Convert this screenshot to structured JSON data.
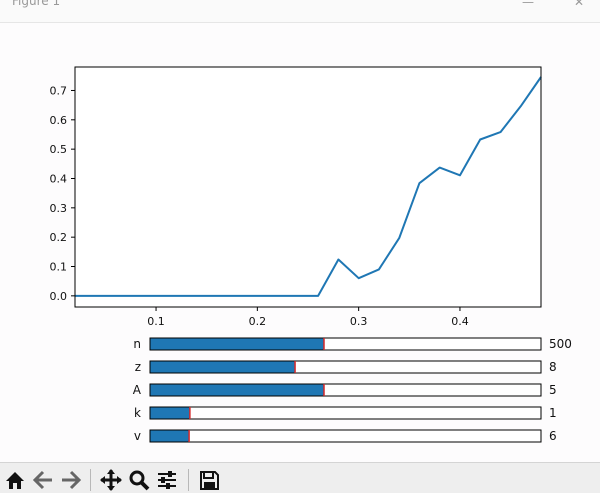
{
  "window": {
    "title": "Figure 1",
    "minimize_glyph": "—",
    "close_glyph": "✕"
  },
  "chart_data": {
    "type": "line",
    "x": [
      0.02,
      0.04,
      0.06,
      0.08,
      0.1,
      0.12,
      0.14,
      0.16,
      0.18,
      0.2,
      0.22,
      0.24,
      0.26,
      0.28,
      0.3,
      0.32,
      0.34,
      0.36,
      0.38,
      0.4,
      0.42,
      0.44,
      0.46,
      0.48
    ],
    "series": [
      {
        "values": [
          0,
          0,
          0,
          0,
          0,
          0,
          0,
          0,
          0,
          0,
          0,
          0,
          0,
          0.124,
          0.06,
          0.09,
          0.197,
          0.384,
          0.437,
          0.411,
          0.533,
          0.558,
          0.646,
          0.746
        ],
        "color": "#1f77b4"
      }
    ],
    "xlim": [
      0.02,
      0.48
    ],
    "ylim": [
      -0.038,
      0.78
    ],
    "xticks": [
      "0.1",
      "0.2",
      "0.3",
      "0.4"
    ],
    "yticks": [
      "0.0",
      "0.1",
      "0.2",
      "0.3",
      "0.4",
      "0.5",
      "0.6",
      "0.7"
    ],
    "xtick_values": [
      0.1,
      0.2,
      0.3,
      0.4
    ],
    "ytick_values": [
      0,
      0.1,
      0.2,
      0.3,
      0.4,
      0.5,
      0.6,
      0.7
    ],
    "title": "",
    "xlabel": "",
    "ylabel": "",
    "grid": false
  },
  "sliders": [
    {
      "label": "n",
      "value_text": "500",
      "fraction": 0.445,
      "marker_fraction": 0.445
    },
    {
      "label": "z",
      "value_text": "8",
      "fraction": 0.371,
      "marker_fraction": 0.371
    },
    {
      "label": "A",
      "value_text": "5",
      "fraction": 0.445,
      "marker_fraction": 0.445
    },
    {
      "label": "k",
      "value_text": "1",
      "fraction": 0.102,
      "marker_fraction": 0.102
    },
    {
      "label": "v",
      "value_text": "6",
      "fraction": 0.1,
      "marker_fraction": 0.1
    }
  ],
  "slider_colors": {
    "fill": "#1f77b4",
    "marker": "#d62728",
    "track": "#ffffff"
  },
  "toolbar": [
    {
      "icon": "home-icon"
    },
    {
      "icon": "back-arrow-icon"
    },
    {
      "icon": "forward-arrow-icon"
    },
    {
      "icon": "pan-icon"
    },
    {
      "icon": "zoom-icon"
    },
    {
      "icon": "configure-subplots-icon"
    },
    {
      "icon": "save-icon"
    }
  ]
}
